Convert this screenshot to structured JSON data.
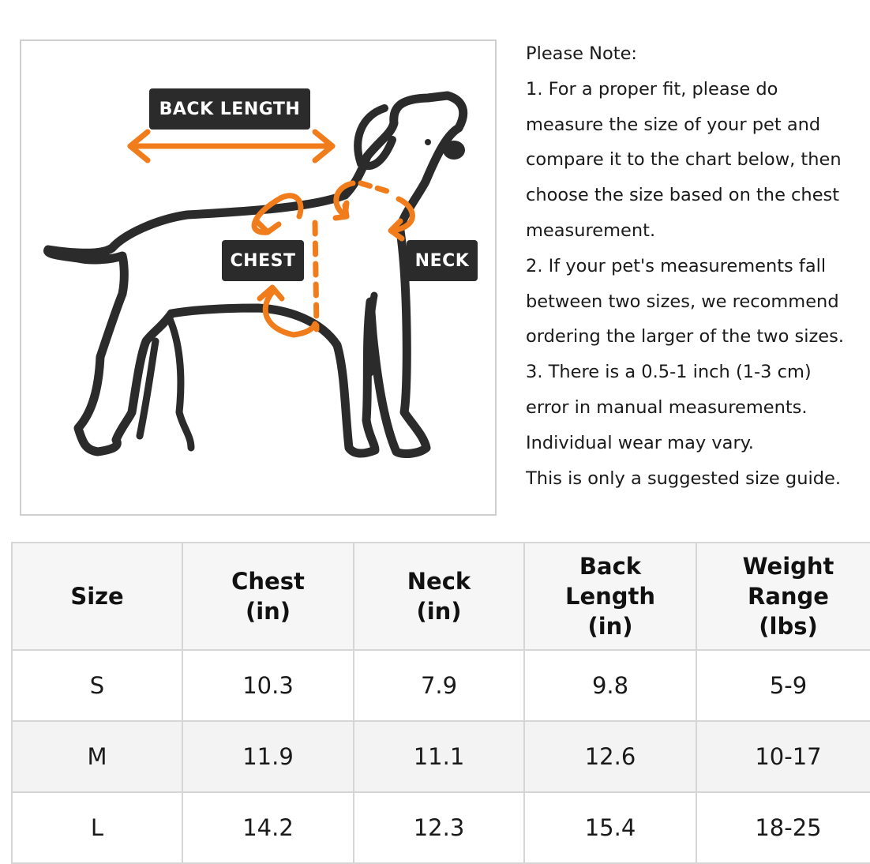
{
  "diagram": {
    "labels": {
      "back_length": "BACK LENGTH",
      "chest": "CHEST",
      "neck": "NECK"
    },
    "accent_color": "#f07c1c",
    "outline_color": "#2b2b2b"
  },
  "notes": [
    "Please Note:",
    "1. For a proper fit, please do",
    "measure the size of your pet and",
    "compare it to the chart below, then",
    "choose the size based on the chest",
    "measurement.",
    "2. If your pet's measurements fall",
    "between two sizes, we recommend",
    "ordering the larger of the two sizes.",
    "3. There is a 0.5-1 inch (1-3 cm)",
    "error in manual measurements.",
    "Individual wear may vary.",
    "This is only a suggested size guide."
  ],
  "table": {
    "headers": [
      [
        "Size"
      ],
      [
        "Chest",
        "(in)"
      ],
      [
        "Neck",
        "(in)"
      ],
      [
        "Back",
        "Length",
        "(in)"
      ],
      [
        "Weight",
        "Range",
        "(lbs)"
      ]
    ],
    "rows": [
      [
        "S",
        "10.3",
        "7.9",
        "9.8",
        "5-9"
      ],
      [
        "M",
        "11.9",
        "11.1",
        "12.6",
        "10-17"
      ],
      [
        "L",
        "14.2",
        "12.3",
        "15.4",
        "18-25"
      ]
    ]
  }
}
